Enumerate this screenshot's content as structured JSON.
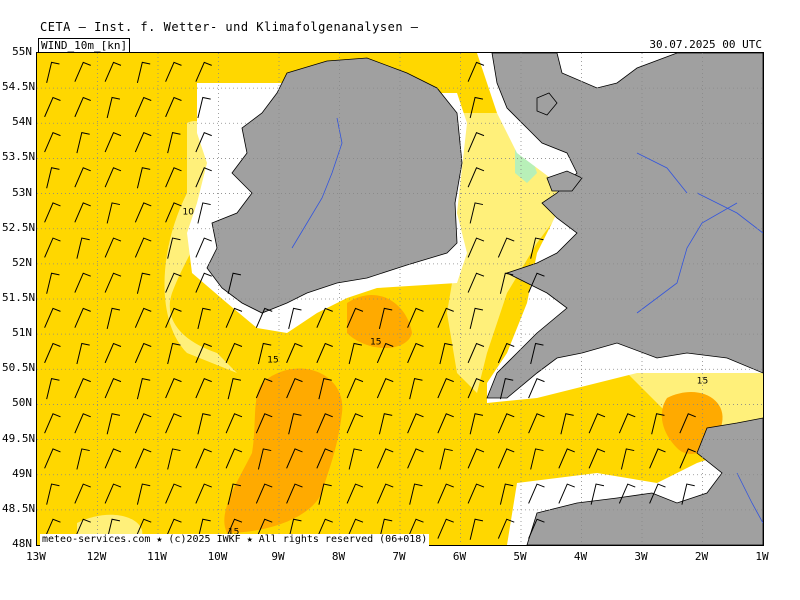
{
  "header": {
    "title": "CETA — Inst. f. Wetter- und Klimafolgenanalysen —",
    "field_label": "WIND_10m_[kn]",
    "valid_time": "30.07.2025  00 UTC"
  },
  "footer": {
    "credit": "meteo-services.com ★ (c)2025 IWKF ★ All rights reserved (06+018)"
  },
  "axes": {
    "lat_labels": [
      "55N",
      "54.5N",
      "54N",
      "53.5N",
      "53N",
      "52.5N",
      "52N",
      "51.5N",
      "51N",
      "50.5N",
      "50N",
      "49.5N",
      "49N",
      "48.5N",
      "48N"
    ],
    "lon_labels": [
      "13W",
      "12W",
      "11W",
      "10W",
      "9W",
      "8W",
      "7W",
      "6W",
      "5W",
      "4W",
      "3W",
      "2W",
      "1W"
    ]
  },
  "contour_labels": [
    {
      "text": "10",
      "lon": -10.5,
      "lat": 52.7
    },
    {
      "text": "15",
      "lon": -7.4,
      "lat": 50.85
    },
    {
      "text": "15",
      "lon": -9.1,
      "lat": 50.6
    },
    {
      "text": "15",
      "lon": -2.0,
      "lat": 50.3
    },
    {
      "text": "15",
      "lon": -9.75,
      "lat": 48.15
    }
  ],
  "colors": {
    "sea_base": "#ffd700",
    "wind_low": "#fff07a",
    "wind_high": "#ffaa00",
    "wind_very_low": "#b8f0b8",
    "land": "#a0a0a0",
    "coast_white": "#ffffff",
    "rivers": "#3355dd",
    "barb": "#000000",
    "grid": "#888888"
  }
}
